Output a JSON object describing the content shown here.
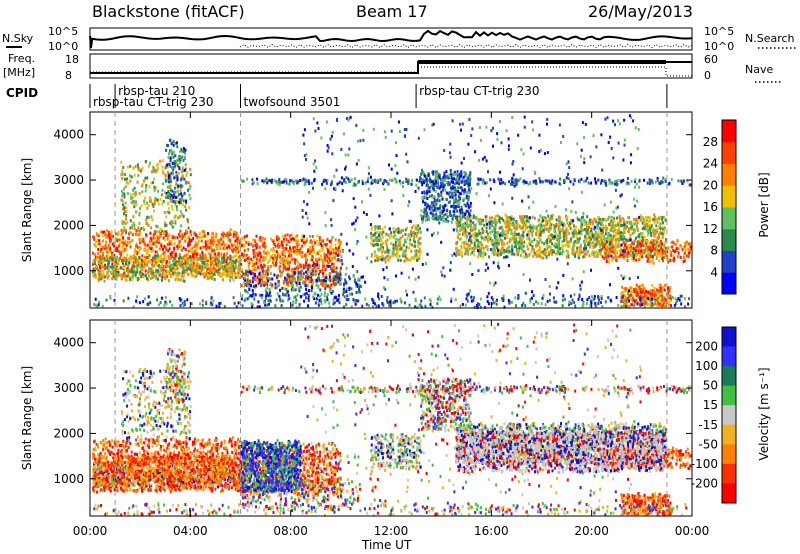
{
  "header": {
    "title": "Blackstone (fitACF)",
    "beam": "Beam 17",
    "date": "26/May/2013"
  },
  "noise_panel": {
    "left_label": "N.Sky",
    "right_label": "N.Search",
    "left_ticks": [
      "10^5",
      "10^0"
    ],
    "right_ticks": [
      "10^5",
      "10^0"
    ]
  },
  "freq_panel": {
    "left_label_line1": "Freq.",
    "left_label_line2": "[MHz]",
    "right_label": "Nave",
    "left_ticks": [
      "18",
      "8"
    ],
    "right_ticks": [
      "60",
      "0"
    ]
  },
  "cpid_panel": {
    "label": "CPID",
    "modes": [
      {
        "name": "rbsp-tau 210",
        "start_h": 1.0,
        "end_h": 6.0,
        "row": 0
      },
      {
        "name": "rbsp-tau CT-trig 230",
        "start_h": 0.0,
        "end_h": 6.0,
        "row": 1
      },
      {
        "name": "twofsound 3501",
        "start_h": 6.0,
        "end_h": 13.0,
        "row": 1
      },
      {
        "name": "rbsp-tau CT-trig 230",
        "start_h": 13.0,
        "end_h": 23.0,
        "row": 0
      }
    ]
  },
  "x_axis": {
    "label": "Time UT",
    "ticks": [
      "00:00",
      "04:00",
      "08:00",
      "12:00",
      "16:00",
      "20:00",
      "00:00"
    ],
    "range": [
      0,
      24
    ]
  },
  "chart_data": [
    {
      "type": "heatmap",
      "title": "",
      "ylabel": "Slant Range [km]",
      "xlabel": "",
      "ylim": [
        180,
        4500
      ],
      "yticks": [
        "1000",
        "2000",
        "3000",
        "4000"
      ],
      "colorbar": {
        "label": "Power [dB]",
        "ticks": [
          "4",
          "8",
          "12",
          "16",
          "20",
          "24",
          "28"
        ],
        "colors": [
          "#0000ff",
          "#2040c8",
          "#2a8a4a",
          "#60c060",
          "#f0c000",
          "#ff8000",
          "#ff4000",
          "#ff0000"
        ]
      }
    },
    {
      "type": "heatmap",
      "title": "",
      "ylabel": "Slant Range [km]",
      "xlabel": "",
      "ylim": [
        180,
        4500
      ],
      "yticks": [
        "1000",
        "2000",
        "3000",
        "4000"
      ],
      "colorbar": {
        "label": "Velocity [m s⁻¹]",
        "ticks": [
          "200",
          "100",
          "50",
          "15",
          "-15",
          "-50",
          "-100",
          "-200"
        ],
        "colors": [
          "#1010d0",
          "#3030ff",
          "#1a7a5a",
          "#40c040",
          "#c8c8c8",
          "#f0b020",
          "#ff8000",
          "#ff3000",
          "#ff0000"
        ]
      }
    }
  ]
}
